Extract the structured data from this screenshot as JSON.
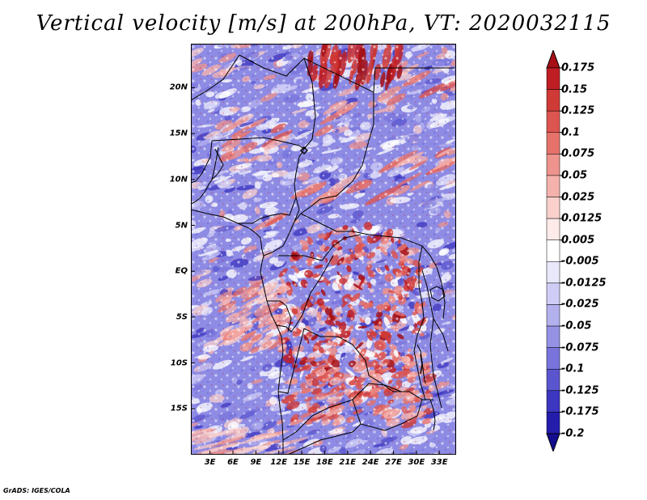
{
  "title": "Vertical velocity [m/s] at 200hPa, VT: 2020032115",
  "axes": {
    "y_ticks": [
      {
        "label": "20N",
        "lat": 20
      },
      {
        "label": "15N",
        "lat": 15
      },
      {
        "label": "10N",
        "lat": 10
      },
      {
        "label": "5N",
        "lat": 5
      },
      {
        "label": "EQ",
        "lat": 0
      },
      {
        "label": "5S",
        "lat": -5
      },
      {
        "label": "10S",
        "lat": -10
      },
      {
        "label": "15S",
        "lat": -15
      }
    ],
    "x_ticks": [
      {
        "label": "3E",
        "lon": 3
      },
      {
        "label": "6E",
        "lon": 6
      },
      {
        "label": "9E",
        "lon": 9
      },
      {
        "label": "12E",
        "lon": 12
      },
      {
        "label": "15E",
        "lon": 15
      },
      {
        "label": "18E",
        "lon": 18
      },
      {
        "label": "21E",
        "lon": 21
      },
      {
        "label": "24E",
        "lon": 24
      },
      {
        "label": "27E",
        "lon": 27
      },
      {
        "label": "30E",
        "lon": 30
      },
      {
        "label": "33E",
        "lon": 33
      }
    ],
    "lon_range": [
      0.5,
      35.2
    ],
    "lat_range": [
      -20,
      24.8
    ]
  },
  "colorbar": {
    "labels": [
      "0.175",
      "0.15",
      "0.125",
      "0.1",
      "0.075",
      "0.05",
      "0.025",
      "0.0125",
      "0.005",
      "-0.005",
      "-0.0125",
      "-0.025",
      "-0.05",
      "-0.075",
      "-0.1",
      "-0.125",
      "-0.175",
      "-0.2"
    ],
    "colors": [
      "#a50f15",
      "#bf1e24",
      "#d03a36",
      "#dd5550",
      "#e6726b",
      "#ee938d",
      "#f5b2ad",
      "#fad0cc",
      "#fdebe9",
      "#ffffff",
      "#e9e8fb",
      "#cfcdf5",
      "#b3b0ee",
      "#9592e6",
      "#7874dc",
      "#5a55cf",
      "#3c36c0",
      "#241dac",
      "#150d8f"
    ]
  },
  "footer": "GrADS: IGES/COLA"
}
